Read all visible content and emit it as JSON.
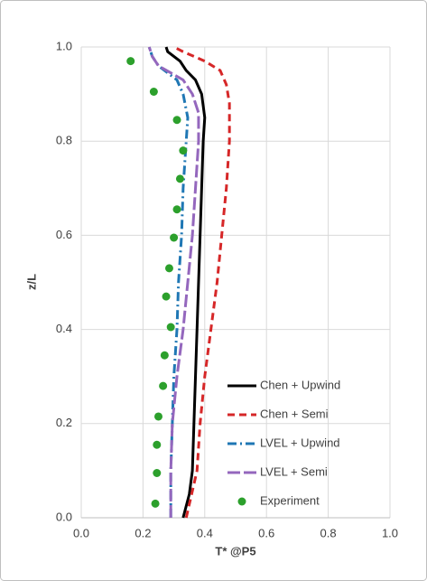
{
  "chart_data": {
    "type": "line",
    "x_label": "T* @P5",
    "y_label": "z/L",
    "xlim": [
      0,
      1
    ],
    "ylim": [
      0,
      1
    ],
    "xticks": [
      {
        "value": 0,
        "label": "0.0"
      },
      0.2,
      0.4,
      0.6,
      0.8,
      {
        "value": 1,
        "label": "1.0"
      }
    ],
    "yticks": [
      {
        "value": 0,
        "label": "0.0"
      },
      0.2,
      0.4,
      0.6,
      0.8,
      {
        "value": 1,
        "label": "1.0"
      }
    ],
    "grid": true,
    "legend": "right",
    "series": [
      {
        "name": "Chen + Upwind",
        "color": "#000000",
        "style": "solid",
        "type": "line",
        "x": [
          0.33,
          0.35,
          0.36,
          0.365,
          0.375,
          0.385,
          0.395,
          0.4,
          0.39,
          0.37,
          0.34,
          0.32,
          0.28,
          0.275
        ],
        "values": [
          0,
          0.05,
          0.1,
          0.2,
          0.4,
          0.6,
          0.8,
          0.85,
          0.9,
          0.93,
          0.95,
          0.97,
          0.99,
          1.0
        ]
      },
      {
        "name": "Chen + Semi",
        "color": "#d62728",
        "style": "dashed",
        "type": "line",
        "x": [
          0.34,
          0.375,
          0.385,
          0.4,
          0.42,
          0.44,
          0.455,
          0.47,
          0.48,
          0.48,
          0.47,
          0.45,
          0.4,
          0.33,
          0.3
        ],
        "values": [
          0,
          0.1,
          0.2,
          0.3,
          0.4,
          0.5,
          0.6,
          0.7,
          0.8,
          0.88,
          0.92,
          0.95,
          0.97,
          0.99,
          1.0
        ]
      },
      {
        "name": "LVEL + Upwind",
        "color": "#1f77b4",
        "style": "dashdot",
        "type": "line",
        "x": [
          0.29,
          0.29,
          0.295,
          0.3,
          0.31,
          0.315,
          0.325,
          0.33,
          0.34,
          0.345,
          0.33,
          0.31,
          0.25,
          0.23,
          0.22
        ],
        "values": [
          0,
          0.1,
          0.2,
          0.3,
          0.4,
          0.5,
          0.6,
          0.7,
          0.8,
          0.85,
          0.9,
          0.93,
          0.96,
          0.98,
          1.0
        ]
      },
      {
        "name": "LVEL + Semi",
        "color": "#9467bd",
        "style": "longdash",
        "type": "line",
        "x": [
          0.29,
          0.29,
          0.295,
          0.31,
          0.33,
          0.345,
          0.36,
          0.37,
          0.38,
          0.38,
          0.36,
          0.33,
          0.25,
          0.23,
          0.22
        ],
        "values": [
          0,
          0.1,
          0.2,
          0.3,
          0.4,
          0.5,
          0.6,
          0.7,
          0.8,
          0.86,
          0.9,
          0.93,
          0.96,
          0.98,
          1.0
        ]
      },
      {
        "name": "Experiment",
        "color": "#2ca02c",
        "style": "none",
        "type": "scatter",
        "x": [
          0.16,
          0.235,
          0.31,
          0.33,
          0.32,
          0.31,
          0.3,
          0.285,
          0.275,
          0.29,
          0.27,
          0.265,
          0.25,
          0.245,
          0.245,
          0.24
        ],
        "values": [
          0.97,
          0.905,
          0.845,
          0.78,
          0.72,
          0.655,
          0.595,
          0.53,
          0.47,
          0.405,
          0.345,
          0.28,
          0.215,
          0.155,
          0.095,
          0.03
        ]
      }
    ]
  }
}
